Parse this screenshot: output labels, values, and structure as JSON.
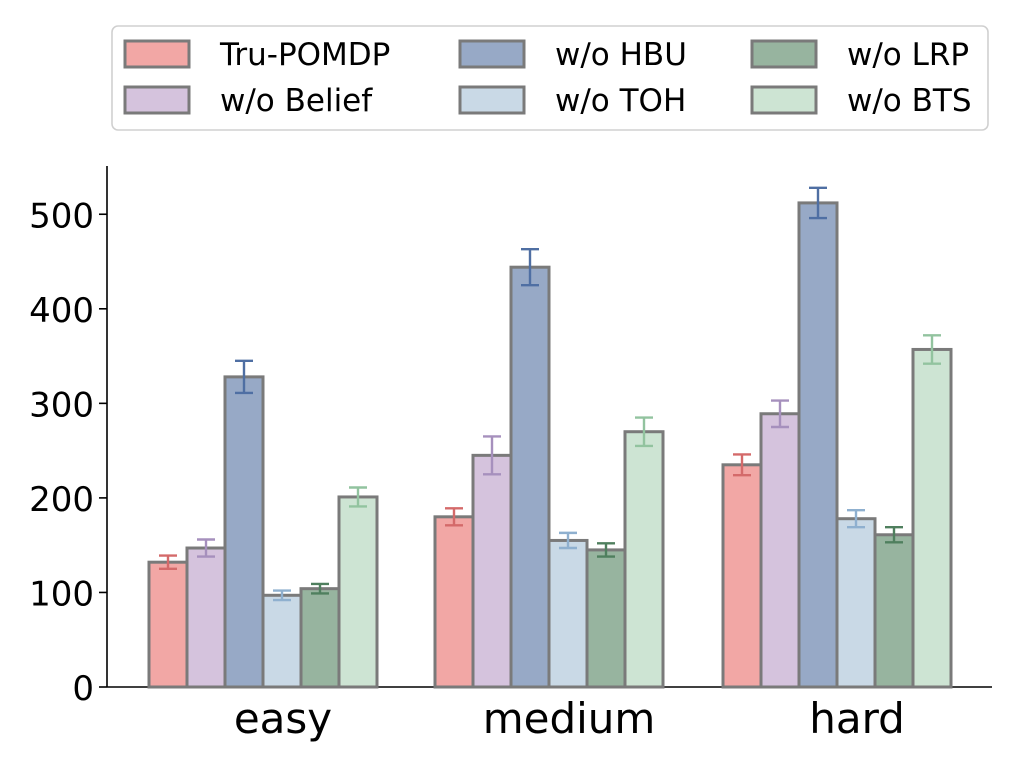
{
  "chart_data": {
    "type": "bar",
    "title": "",
    "xlabel": "",
    "ylabel": "",
    "categories": [
      "easy",
      "medium",
      "hard"
    ],
    "ylim": [
      0,
      550
    ],
    "yticks": [
      0,
      100,
      200,
      300,
      400,
      500
    ],
    "grid": false,
    "legend_position": "top",
    "legend_columns": 3,
    "series": [
      {
        "name": "Tru-POMDP",
        "values": [
          132,
          180,
          235
        ],
        "errors": [
          7,
          9,
          11
        ],
        "color": "#f2a7a5",
        "error_color": "#d46a6a"
      },
      {
        "name": "w/o Belief",
        "values": [
          147,
          245,
          289
        ],
        "errors": [
          9,
          20,
          14
        ],
        "color": "#d5c3dd",
        "error_color": "#a690bd"
      },
      {
        "name": "w/o HBU",
        "values": [
          328,
          444,
          512
        ],
        "errors": [
          17,
          19,
          16
        ],
        "color": "#97a9c6",
        "error_color": "#4f6fa3"
      },
      {
        "name": "w/o TOH",
        "values": [
          97,
          155,
          178
        ],
        "errors": [
          5,
          8,
          9
        ],
        "color": "#c9d9e6",
        "error_color": "#8fb0cf"
      },
      {
        "name": "w/o LRP",
        "values": [
          104,
          145,
          161
        ],
        "errors": [
          5,
          7,
          8
        ],
        "color": "#97b49f",
        "error_color": "#4f7f5e"
      },
      {
        "name": "w/o BTS",
        "values": [
          201,
          270,
          357
        ],
        "errors": [
          10,
          15,
          15
        ],
        "color": "#cde4d3",
        "error_color": "#92c39f"
      }
    ],
    "bar_edge_color": "#7a7a7a"
  }
}
